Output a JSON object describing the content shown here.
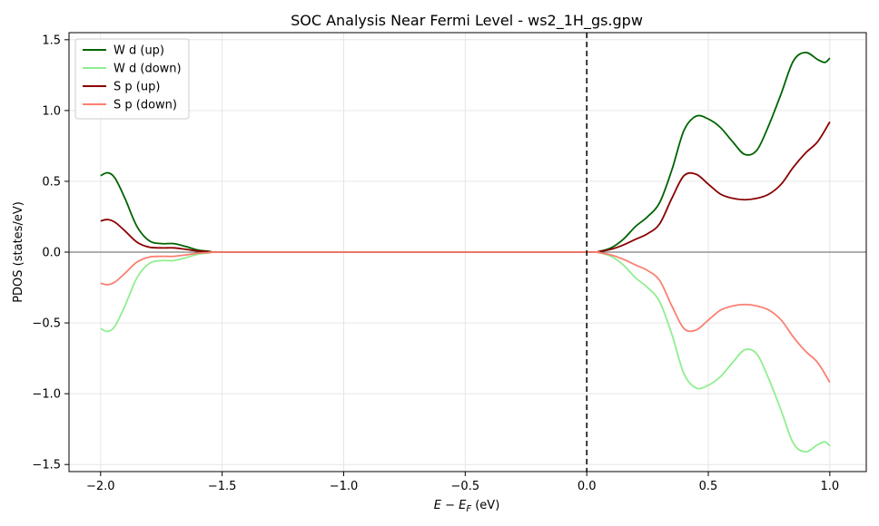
{
  "chart_data": {
    "type": "line",
    "title": "SOC Analysis Near Fermi Level - ws2_1H_gs.gpw",
    "xlabel_main": "E − E",
    "xlabel_sub": "F",
    "xlabel_unit": " (eV)",
    "ylabel": "PDOS (states/eV)",
    "xlim": [
      -2.13,
      1.15
    ],
    "ylim": [
      -1.55,
      1.55
    ],
    "xticks": [
      -2.0,
      -1.5,
      -1.0,
      -0.5,
      0.0,
      0.5,
      1.0
    ],
    "xtick_labels": [
      "−2.0",
      "−1.5",
      "−1.0",
      "−0.5",
      "0.0",
      "0.5",
      "1.0"
    ],
    "yticks": [
      -1.5,
      -1.0,
      -0.5,
      0.0,
      0.5,
      1.0,
      1.5
    ],
    "ytick_labels": [
      "−1.5",
      "−1.0",
      "−0.5",
      "0.0",
      "0.5",
      "1.0",
      "1.5"
    ],
    "grid": true,
    "legend_position": "top-left",
    "fermi_line_x": 0.0,
    "series": [
      {
        "name": "W d (up)",
        "color": "#006400",
        "x": [
          -2.0,
          -1.97,
          -1.94,
          -1.9,
          -1.85,
          -1.8,
          -1.75,
          -1.7,
          -1.65,
          -1.6,
          -1.55,
          -1.5,
          -1.0,
          -0.5,
          0.0,
          0.05,
          0.1,
          0.15,
          0.2,
          0.25,
          0.3,
          0.35,
          0.4,
          0.45,
          0.5,
          0.55,
          0.6,
          0.65,
          0.7,
          0.75,
          0.8,
          0.85,
          0.9,
          0.95,
          0.98,
          1.0
        ],
        "y": [
          0.54,
          0.56,
          0.52,
          0.38,
          0.18,
          0.08,
          0.06,
          0.06,
          0.04,
          0.015,
          0.005,
          0.0,
          0.0,
          0.0,
          0.0,
          0.005,
          0.03,
          0.09,
          0.18,
          0.25,
          0.35,
          0.58,
          0.86,
          0.96,
          0.94,
          0.88,
          0.78,
          0.69,
          0.72,
          0.9,
          1.12,
          1.35,
          1.41,
          1.36,
          1.34,
          1.37
        ]
      },
      {
        "name": "W d (down)",
        "color": "#90ee90",
        "x": [
          -2.0,
          -1.97,
          -1.94,
          -1.9,
          -1.85,
          -1.8,
          -1.75,
          -1.7,
          -1.65,
          -1.6,
          -1.55,
          -1.5,
          -1.0,
          -0.5,
          0.0,
          0.05,
          0.1,
          0.15,
          0.2,
          0.25,
          0.3,
          0.35,
          0.4,
          0.45,
          0.5,
          0.55,
          0.6,
          0.65,
          0.7,
          0.75,
          0.8,
          0.85,
          0.9,
          0.95,
          0.98,
          1.0
        ],
        "y": [
          -0.54,
          -0.56,
          -0.52,
          -0.38,
          -0.18,
          -0.08,
          -0.06,
          -0.06,
          -0.04,
          -0.015,
          -0.005,
          0.0,
          0.0,
          0.0,
          0.0,
          -0.005,
          -0.03,
          -0.09,
          -0.18,
          -0.25,
          -0.35,
          -0.58,
          -0.86,
          -0.96,
          -0.94,
          -0.88,
          -0.78,
          -0.69,
          -0.72,
          -0.9,
          -1.12,
          -1.35,
          -1.41,
          -1.36,
          -1.34,
          -1.37
        ]
      },
      {
        "name": "S p (up)",
        "color": "#8b0000",
        "x": [
          -2.0,
          -1.97,
          -1.94,
          -1.9,
          -1.85,
          -1.8,
          -1.75,
          -1.7,
          -1.65,
          -1.6,
          -1.55,
          -1.5,
          -1.0,
          -0.5,
          0.0,
          0.05,
          0.1,
          0.15,
          0.2,
          0.25,
          0.3,
          0.35,
          0.4,
          0.45,
          0.5,
          0.55,
          0.6,
          0.65,
          0.7,
          0.75,
          0.8,
          0.85,
          0.9,
          0.95,
          1.0
        ],
        "y": [
          0.22,
          0.23,
          0.21,
          0.15,
          0.07,
          0.035,
          0.03,
          0.03,
          0.02,
          0.008,
          0.003,
          0.0,
          0.0,
          0.0,
          0.0,
          0.004,
          0.02,
          0.05,
          0.09,
          0.13,
          0.2,
          0.38,
          0.54,
          0.55,
          0.48,
          0.41,
          0.38,
          0.37,
          0.38,
          0.41,
          0.48,
          0.6,
          0.7,
          0.78,
          0.92
        ]
      },
      {
        "name": "S p (down)",
        "color": "#fa8072",
        "x": [
          -2.0,
          -1.97,
          -1.94,
          -1.9,
          -1.85,
          -1.8,
          -1.75,
          -1.7,
          -1.65,
          -1.6,
          -1.55,
          -1.5,
          -1.0,
          -0.5,
          0.0,
          0.05,
          0.1,
          0.15,
          0.2,
          0.25,
          0.3,
          0.35,
          0.4,
          0.45,
          0.5,
          0.55,
          0.6,
          0.65,
          0.7,
          0.75,
          0.8,
          0.85,
          0.9,
          0.95,
          1.0
        ],
        "y": [
          -0.22,
          -0.23,
          -0.21,
          -0.15,
          -0.07,
          -0.035,
          -0.03,
          -0.03,
          -0.02,
          -0.008,
          -0.003,
          0.0,
          0.0,
          0.0,
          0.0,
          -0.004,
          -0.02,
          -0.05,
          -0.09,
          -0.13,
          -0.2,
          -0.38,
          -0.54,
          -0.55,
          -0.48,
          -0.41,
          -0.38,
          -0.37,
          -0.38,
          -0.41,
          -0.48,
          -0.6,
          -0.7,
          -0.78,
          -0.92
        ]
      }
    ]
  }
}
